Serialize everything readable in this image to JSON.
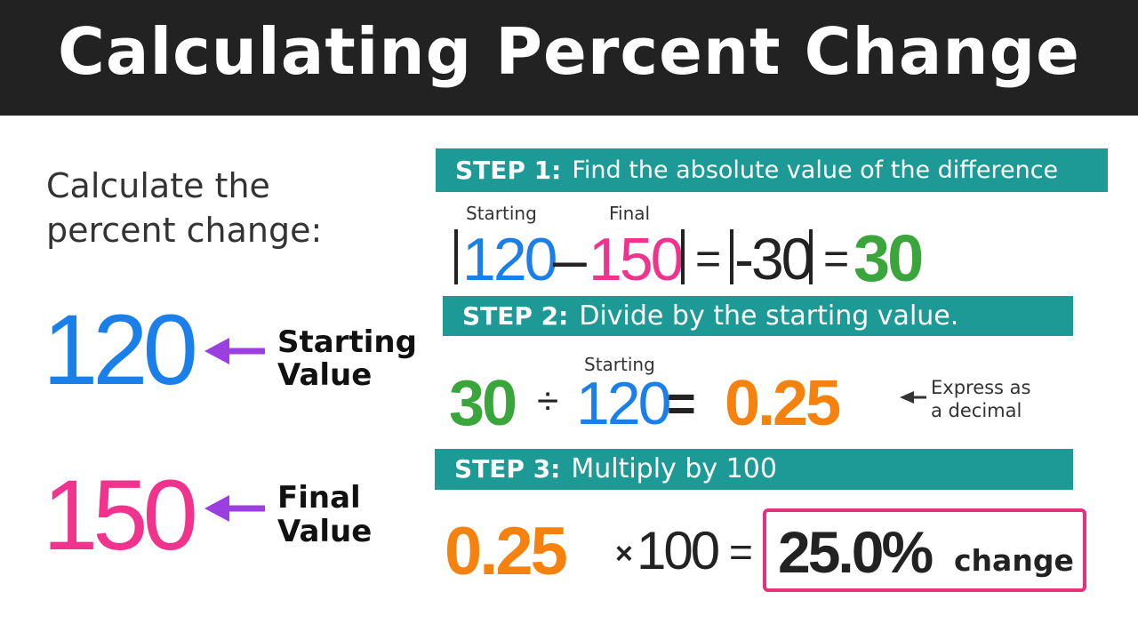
{
  "header": {
    "title": "Calculating Percent Change"
  },
  "problem": {
    "prompt": [
      "Calculate the",
      "percent change:"
    ],
    "start": {
      "number": "120",
      "label": [
        "Starting",
        "Value"
      ]
    },
    "final": {
      "number": "150",
      "label": [
        "Final",
        "Value"
      ]
    }
  },
  "steps": [
    {
      "label": "STEP 1:",
      "text": "Find the absolute value of the difference",
      "expression": {
        "start_caption": "Starting",
        "start": "120",
        "minus": "–",
        "final_caption": "Final",
        "final": "150",
        "equals_1": "=",
        "difference": "-30",
        "equals_2": "=",
        "result": "30"
      }
    },
    {
      "label": "STEP 2:",
      "text": "Divide by the starting value.",
      "expression": {
        "dividend": "30",
        "divide": "÷",
        "divisor_caption": "Starting",
        "divisor": "120",
        "equals": "=",
        "result": "0.25",
        "note": [
          "Express as",
          "a decimal"
        ]
      }
    },
    {
      "label": "STEP 3:",
      "text": "Multiply by 100",
      "expression": {
        "value": "0.25",
        "times": "×",
        "multiplier": "100",
        "equals": "=",
        "result": "25.0%",
        "unit": "change"
      }
    }
  ]
}
